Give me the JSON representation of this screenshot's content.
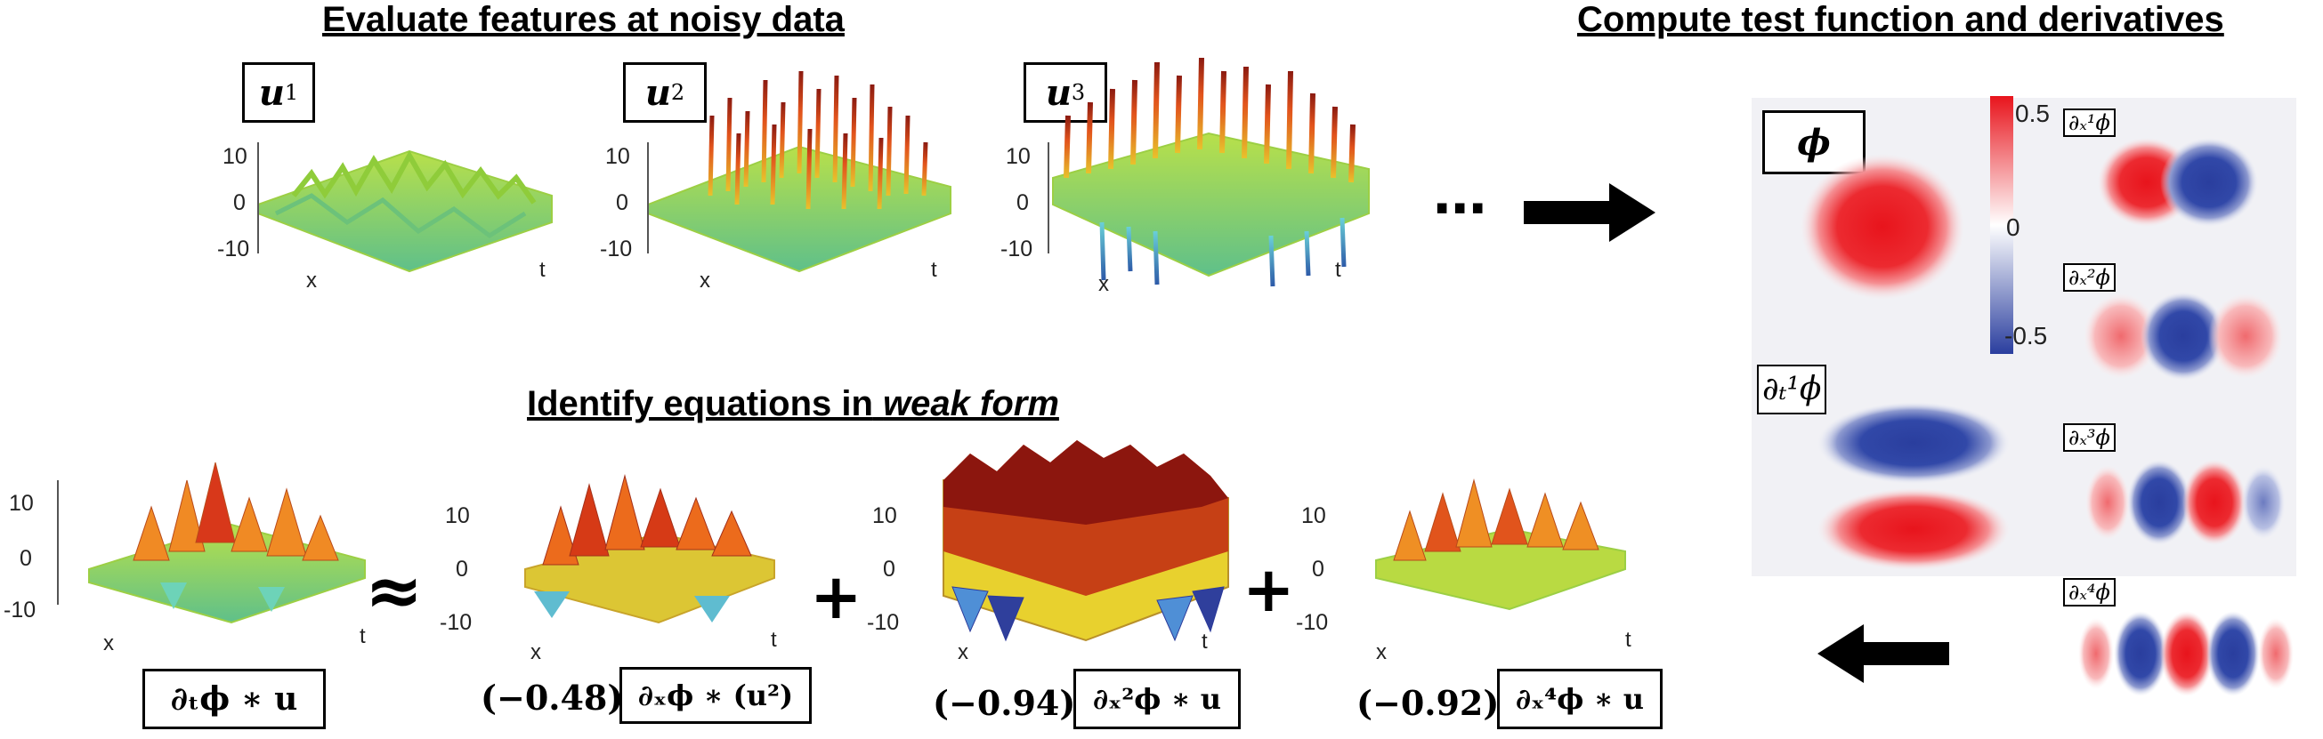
{
  "headings": {
    "top_left": "Evaluate features at noisy data",
    "top_right": "Compute test function and derivatives",
    "bottom": "Identify equations in",
    "bottom_italic": "weak form"
  },
  "features": [
    {
      "label_base": "u",
      "label_sup": "1"
    },
    {
      "label_base": "u",
      "label_sup": "2"
    },
    {
      "label_base": "u",
      "label_sup": "3"
    }
  ],
  "ellipsis": "⋯",
  "z_ticks": [
    "10",
    "0",
    "-10"
  ],
  "axis_x": "x",
  "axis_t": "t",
  "equation": {
    "lhs": "∂ₜϕ ∗ u",
    "approx": "≈",
    "plus": "+",
    "terms": [
      {
        "coef": "(−0.48)",
        "expr": "∂ₓϕ ∗ (u²)"
      },
      {
        "coef": "(−0.94)",
        "expr": "∂ₓ²ϕ ∗ u"
      },
      {
        "coef": "(−0.92)",
        "expr": "∂ₓ⁴ϕ ∗ u"
      }
    ]
  },
  "test_function": {
    "phi_label": "ϕ",
    "colorbar_ticks": [
      "0.5",
      "0",
      "-0.5"
    ],
    "colorbar_colors": {
      "high": "#e8141c",
      "mid": "#ffffff",
      "low": "#2a3e9e"
    },
    "t_derivative_label": "∂ₜ¹ϕ",
    "x_derivative_labels": [
      "∂ₓ¹ϕ",
      "∂ₓ²ϕ",
      "∂ₓ³ϕ",
      "∂ₓ⁴ϕ"
    ]
  },
  "colors": {
    "red": "#e8141c",
    "blue": "#2a3e9e",
    "arrow": "#000000"
  }
}
